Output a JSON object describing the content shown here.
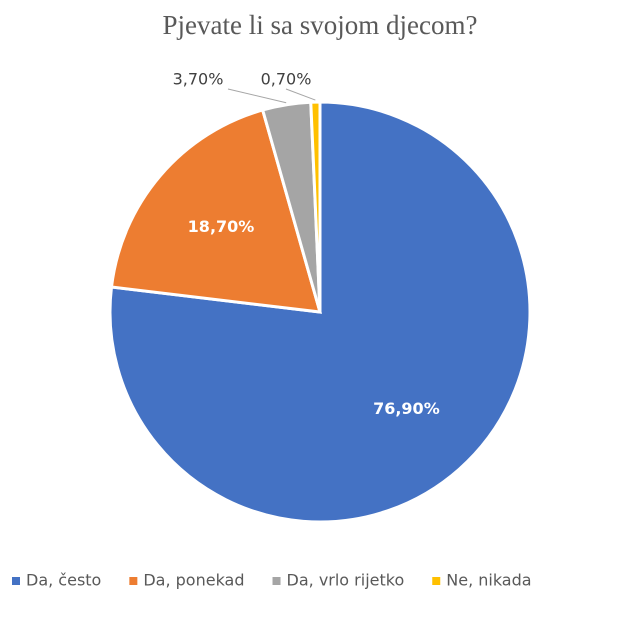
{
  "chart_data": {
    "type": "pie",
    "title": "Pjevate li sa svojom djecom?",
    "categories": [
      "Da, često",
      "Da, ponekad",
      "Da, vrlo rijetko",
      "Ne, nikada"
    ],
    "values": [
      76.9,
      18.7,
      3.7,
      0.7
    ],
    "value_labels": [
      "76,90%",
      "18,70%",
      "3,70%",
      "0,70%"
    ],
    "colors": [
      "#4472c4",
      "#ed7d31",
      "#a5a5a5",
      "#ffc000"
    ],
    "legend": "bottom"
  }
}
